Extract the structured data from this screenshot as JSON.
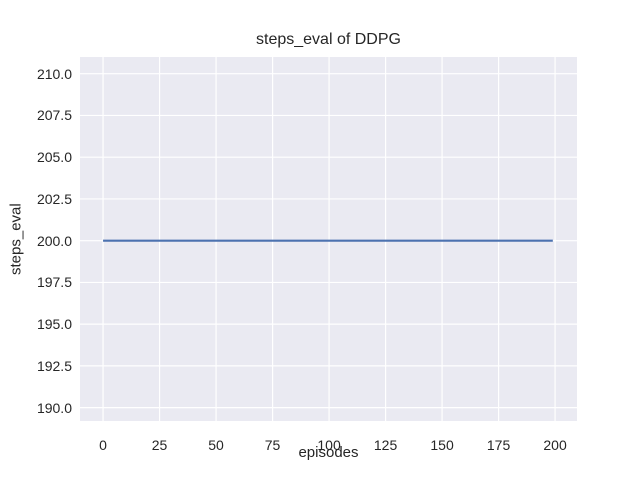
{
  "chart_data": {
    "type": "line",
    "title": "steps_eval of DDPG",
    "xlabel": "episodes",
    "ylabel": "steps_eval",
    "xlim": [
      -10.2,
      209.7
    ],
    "ylim": [
      189.2,
      211.0
    ],
    "xtick_values": [
      0,
      25,
      50,
      75,
      100,
      125,
      150,
      175,
      200
    ],
    "xtick_labels": [
      "0",
      "25",
      "50",
      "75",
      "100",
      "125",
      "150",
      "175",
      "200"
    ],
    "ytick_values": [
      190.0,
      192.5,
      195.0,
      197.5,
      200.0,
      202.5,
      205.0,
      207.5,
      210.0
    ],
    "ytick_labels": [
      "190.0",
      "192.5",
      "195.0",
      "197.5",
      "200.0",
      "202.5",
      "205.0",
      "207.5",
      "210.0"
    ],
    "grid": true,
    "legend": false,
    "series": [
      {
        "name": "steps_eval",
        "color": "#4c72b0",
        "x": [
          0,
          199
        ],
        "y": [
          200,
          200
        ],
        "note": "constant value 200 across all episodes"
      }
    ]
  },
  "style": {
    "figure_bg": "#ffffff",
    "axes_bg": "#eaeaf2",
    "grid_color": "#ffffff",
    "text_color": "#262626"
  }
}
